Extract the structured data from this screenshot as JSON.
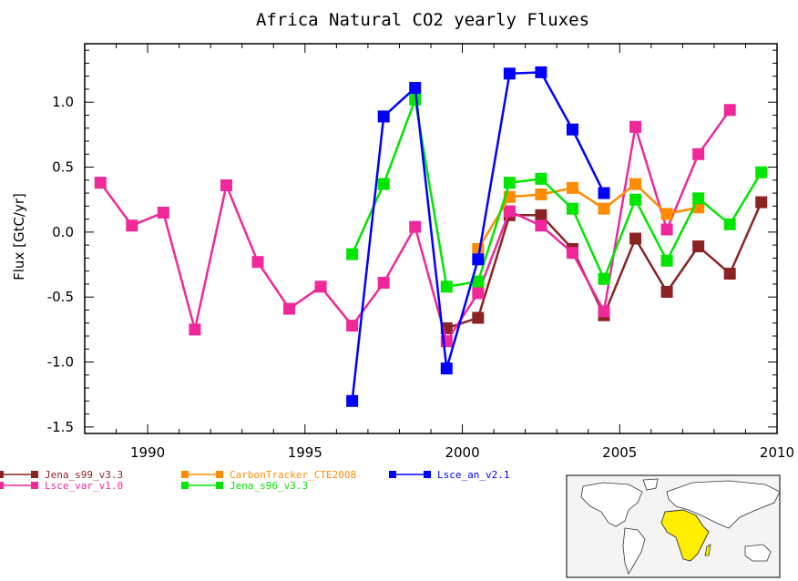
{
  "chart_data": {
    "type": "line",
    "title": "Africa Natural CO2 yearly Fluxes",
    "xlabel": "",
    "ylabel": "Flux [GtC/yr]",
    "xlim": [
      1988,
      2010
    ],
    "ylim": [
      -1.55,
      1.45
    ],
    "x_ticks": [
      1990,
      1995,
      2000,
      2005,
      2010
    ],
    "y_ticks": [
      -1.5,
      -1.0,
      -0.5,
      0.0,
      0.5,
      1.0
    ],
    "y_tick_labels": [
      "-1.5",
      "-1.0",
      "-0.5",
      "0.0",
      "0.5",
      "1.0"
    ],
    "legend_position": "bottom-left, below plot",
    "inset_map": "world map with Africa highlighted in yellow",
    "series": [
      {
        "name": "Jena_s99_v3.3",
        "color": "#8b2323",
        "x": [
          1999.5,
          2000.5,
          2001.5,
          2002.5,
          2003.5,
          2004.5,
          2005.5,
          2006.5,
          2007.5,
          2008.5,
          2009.5
        ],
        "y": [
          -0.74,
          -0.66,
          0.13,
          0.13,
          -0.13,
          -0.64,
          -0.05,
          -0.46,
          -0.11,
          -0.32,
          0.23
        ]
      },
      {
        "name": "Lsce_var_v1.0",
        "color": "#f0289a",
        "x": [
          1988.5,
          1989.5,
          1990.5,
          1991.5,
          1992.5,
          1993.5,
          1994.5,
          1995.5,
          1996.5,
          1997.5,
          1998.5,
          1999.5,
          2000.5,
          2001.5,
          2002.5,
          2003.5,
          2004.5,
          2005.5,
          2006.5,
          2007.5,
          2008.5
        ],
        "y": [
          0.38,
          0.05,
          0.15,
          -0.75,
          0.36,
          -0.23,
          -0.59,
          -0.42,
          -0.72,
          -0.39,
          0.04,
          -0.84,
          -0.47,
          0.16,
          0.05,
          -0.16,
          -0.61,
          0.81,
          0.02,
          0.6,
          0.94
        ]
      },
      {
        "name": "CarbonTracker_CTE2008",
        "color": "#ff8c00",
        "x": [
          2000.5,
          2001.5,
          2002.5,
          2003.5,
          2004.5,
          2005.5,
          2006.5,
          2007.5
        ],
        "y": [
          -0.13,
          0.27,
          0.29,
          0.34,
          0.18,
          0.37,
          0.14,
          0.19
        ]
      },
      {
        "name": "Jena_s96_v3.3",
        "color": "#00e600",
        "x": [
          1996.5,
          1997.5,
          1998.5,
          1999.5,
          2000.5,
          2001.5,
          2002.5,
          2003.5,
          2004.5,
          2005.5,
          2006.5,
          2007.5,
          2008.5,
          2009.5
        ],
        "y": [
          -0.17,
          0.37,
          1.02,
          -0.42,
          -0.38,
          0.38,
          0.41,
          0.18,
          -0.36,
          0.25,
          -0.22,
          0.26,
          0.06,
          0.46
        ]
      },
      {
        "name": "Lsce_an_v2.1",
        "color": "#0000ff",
        "x": [
          1996.5,
          1997.5,
          1998.5,
          1999.5,
          2000.5,
          2001.5,
          2002.5,
          2003.5,
          2004.5
        ],
        "y": [
          -1.3,
          0.89,
          1.11,
          -1.05,
          -0.21,
          1.22,
          1.23,
          0.79,
          0.3
        ]
      }
    ]
  }
}
